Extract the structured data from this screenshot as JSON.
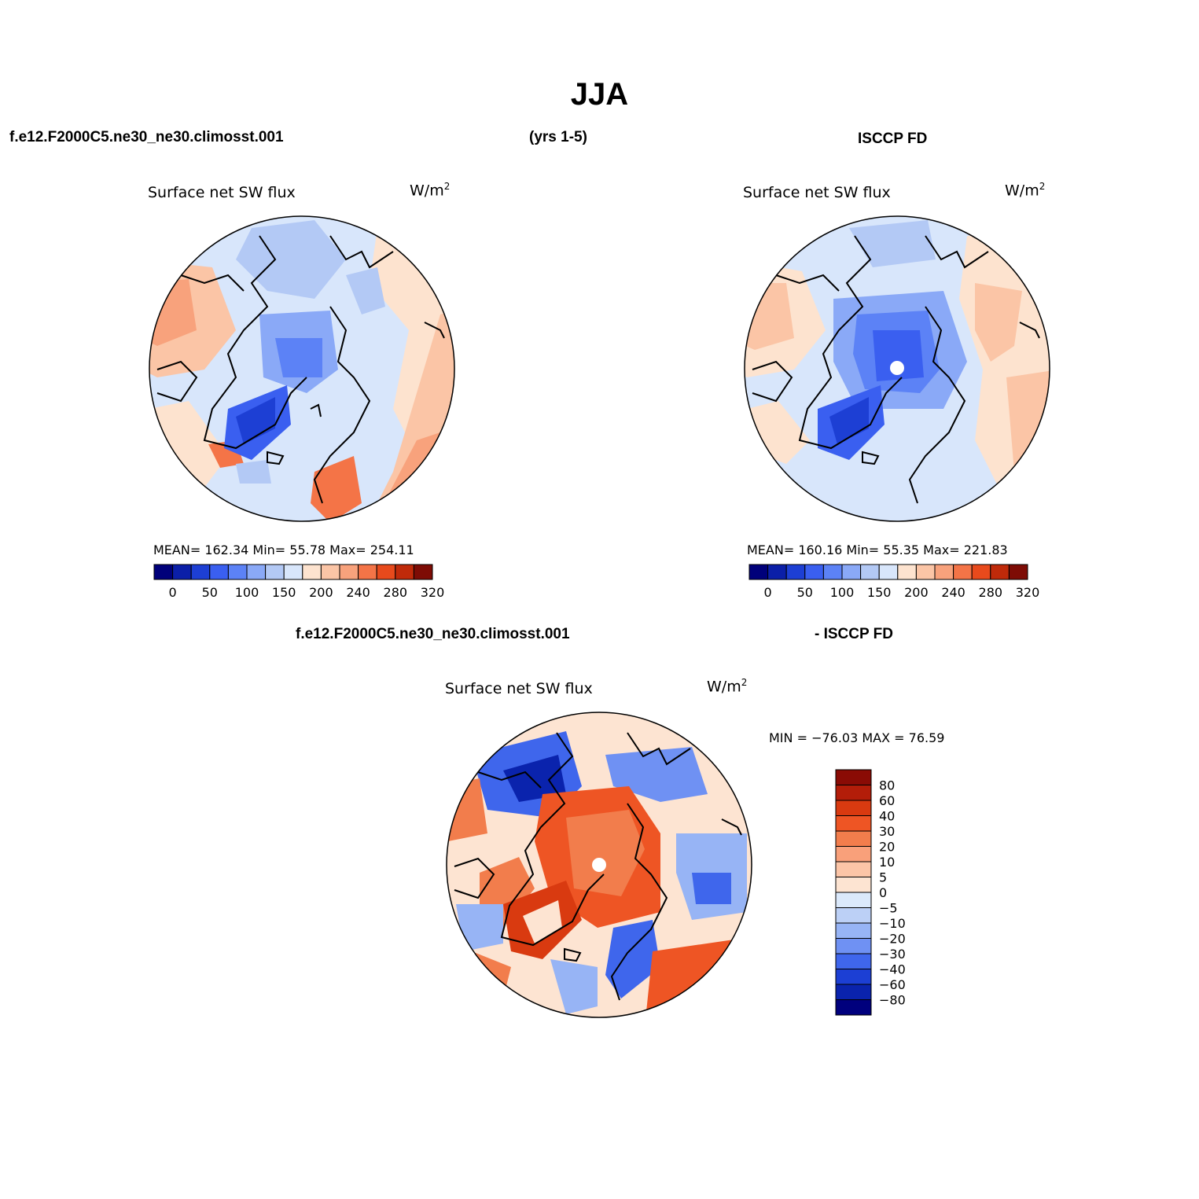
{
  "title": "JJA",
  "top_left_header": "f.e12.F2000C5.ne30_ne30.climosst.001",
  "top_mid_header": "(yrs 1-5)",
  "top_right_header": "ISCCP FD",
  "bottom_header_left": "f.e12.F2000C5.ne30_ne30.climosst.001",
  "bottom_header_right": "- ISCCP FD",
  "panels": {
    "model": {
      "variable": "Surface net SW flux",
      "units": "W/m",
      "units_sup": "2",
      "stats": "MEAN=  162.34   Min=   55.78   Max=  254.11"
    },
    "obs": {
      "variable": "Surface net SW flux",
      "units": "W/m",
      "units_sup": "2",
      "stats": "MEAN=  160.16   Min=   55.35   Max=  221.83"
    },
    "diff": {
      "variable": "Surface net SW flux",
      "units": "W/m",
      "units_sup": "2",
      "stats": "MIN = −76.03  MAX =   76.59"
    }
  },
  "abs_colorbar": {
    "colors": [
      "#00007a",
      "#0b1fa8",
      "#1d3fd4",
      "#3a5ff0",
      "#5c82f6",
      "#8aa9f7",
      "#b3c9f5",
      "#d8e6fb",
      "#fde3cf",
      "#fbc5a6",
      "#f8a27c",
      "#f47447",
      "#e84a1c",
      "#c02a0a",
      "#7e0c05"
    ],
    "labels": [
      "0",
      "50",
      "100",
      "150",
      "200",
      "240",
      "280",
      "320"
    ]
  },
  "diff_colorbar": {
    "colors": [
      "#8a0b05",
      "#b31d09",
      "#d93a10",
      "#ee5524",
      "#f27d4c",
      "#f9a07a",
      "#fcc5a7",
      "#fde4d2",
      "#dbe9fb",
      "#bcd0f6",
      "#97b4f5",
      "#6f91f3",
      "#3f66ec",
      "#1c3fd4",
      "#0a23ad",
      "#00007d"
    ],
    "labels": [
      "80",
      "60",
      "40",
      "30",
      "20",
      "10",
      "5",
      "0",
      "−5",
      "−10",
      "−20",
      "−30",
      "−40",
      "−60",
      "−80"
    ]
  }
}
